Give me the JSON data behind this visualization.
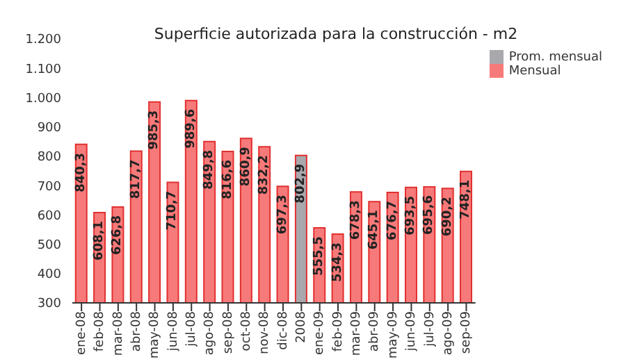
{
  "chart_data": {
    "type": "bar",
    "title": "Superficie autorizada para la construcción - m2",
    "categories": [
      "ene-08",
      "feb-08",
      "mar-08",
      "abr-08",
      "may-08",
      "jun-08",
      "jul-08",
      "ago-08",
      "sep-08",
      "oct-08",
      "nov-08",
      "dic-08",
      "2008",
      "ene-09",
      "feb-09",
      "mar-09",
      "abr-09",
      "may-09",
      "jun-09",
      "jul-09",
      "ago-09",
      "sep-09"
    ],
    "series": [
      {
        "name": "Prom. mensual",
        "color": "#a8a8ad",
        "values": [
          null,
          null,
          null,
          null,
          null,
          null,
          null,
          null,
          null,
          null,
          null,
          null,
          802.9,
          null,
          null,
          null,
          null,
          null,
          null,
          null,
          null,
          null
        ],
        "value_labels": [
          null,
          null,
          null,
          null,
          null,
          null,
          null,
          null,
          null,
          null,
          null,
          null,
          "802,9",
          null,
          null,
          null,
          null,
          null,
          null,
          null,
          null,
          null
        ]
      },
      {
        "name": "Mensual",
        "color": "#f77a7a",
        "values": [
          840.3,
          608.1,
          626.8,
          817.7,
          985.3,
          710.7,
          989.6,
          849.8,
          816.6,
          860.9,
          832.2,
          697.3,
          null,
          555.5,
          534.3,
          678.3,
          645.1,
          676.7,
          693.5,
          695.6,
          690.2,
          748.1
        ],
        "value_labels": [
          "840,3",
          "608,1",
          "626,8",
          "817,7",
          "985,3",
          "710,7",
          "989,6",
          "849,8",
          "816,6",
          "860,9",
          "832,2",
          "697,3",
          null,
          "555,5",
          "534,3",
          "678,3",
          "645,1",
          "676,7",
          "693,5",
          "695,6",
          "690,2",
          "748,1"
        ]
      }
    ],
    "ylim": [
      300,
      1200
    ],
    "yticks": [
      300,
      400,
      500,
      600,
      700,
      800,
      900,
      {
        "value": 1000,
        "label": "1.000"
      },
      {
        "value": 1100,
        "label": "1.100"
      },
      {
        "value": 1200,
        "label": "1.200"
      }
    ],
    "grid": false,
    "legend": "top right"
  }
}
